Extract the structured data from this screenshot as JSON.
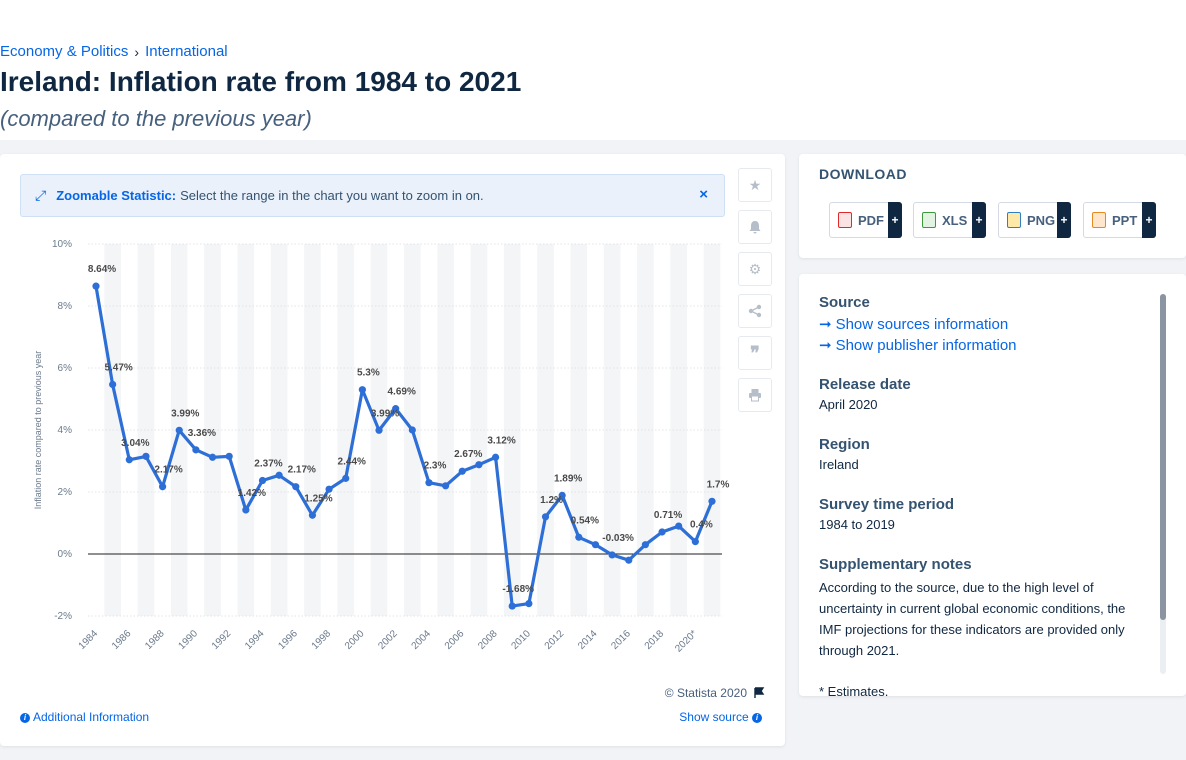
{
  "breadcrumb": {
    "item1": "Economy & Politics",
    "item2": "International",
    "separator": "›"
  },
  "title": "Ireland: Inflation rate from 1984 to 2021",
  "subtitle": "(compared to the previous year)",
  "zoom": {
    "icon": "expand-icon",
    "bold": "Zoomable Statistic:",
    "text": "Select the range in the chart you want to zoom in on.",
    "close": "×"
  },
  "credit": "© Statista 2020",
  "additional_info": "Additional Information",
  "show_source": "Show source",
  "tools": [
    "star-icon",
    "bell-icon",
    "gear-icon",
    "share-icon",
    "quote-icon",
    "print-icon"
  ],
  "download": {
    "title": "DOWNLOAD",
    "buttons": [
      {
        "label": "PDF",
        "color": "#e02a2a"
      },
      {
        "label": "XLS",
        "color": "#3c9a3c"
      },
      {
        "label": "PNG",
        "color": "#2f7fc8"
      },
      {
        "label": "PPT",
        "color": "#e58a1e"
      }
    ],
    "plus": "+"
  },
  "details": {
    "source_h": "Source",
    "show_sources": "Show sources information",
    "show_publisher": "Show publisher information",
    "release_h": "Release date",
    "release_v": "April 2020",
    "region_h": "Region",
    "region_v": "Ireland",
    "survey_h": "Survey time period",
    "survey_v": "1984 to 2019",
    "notes_h": "Supplementary notes",
    "notes_v": "According to the source, due to the high level of uncertainty in current global economic conditions, the IMF projections for these indicators are provided only through 2021.",
    "footnote": "* Estimates."
  },
  "colors": {
    "accent": "#0666e5",
    "line": "#2d6fd6",
    "text_dark": "#0f2741"
  },
  "chart_data": {
    "type": "line",
    "title": "Ireland: Inflation rate from 1984 to 2021",
    "subtitle": "(compared to the previous year)",
    "xlabel": "",
    "ylabel": "Inflation rate compared to previous year",
    "ylim": [
      -2,
      10
    ],
    "yticks": [
      "-2%",
      "0%",
      "2%",
      "4%",
      "6%",
      "8%",
      "10%"
    ],
    "xtick_labels": [
      "1984",
      "1986",
      "1988",
      "1990",
      "1992",
      "1994",
      "1996",
      "1998",
      "2000",
      "2002",
      "2004",
      "2006",
      "2008",
      "2010",
      "2012",
      "2014",
      "2016",
      "2018",
      "2020*"
    ],
    "grid": true,
    "x": [
      1984,
      1985,
      1986,
      1987,
      1988,
      1989,
      1990,
      1991,
      1992,
      1993,
      1994,
      1995,
      1996,
      1997,
      1998,
      1999,
      2000,
      2001,
      2002,
      2003,
      2004,
      2005,
      2006,
      2007,
      2008,
      2009,
      2010,
      2011,
      2012,
      2013,
      2014,
      2015,
      2016,
      2017,
      2018,
      2019,
      2020,
      2021
    ],
    "values": [
      8.64,
      5.47,
      3.04,
      3.15,
      2.17,
      3.99,
      3.36,
      3.12,
      3.15,
      1.42,
      2.37,
      2.54,
      2.17,
      1.25,
      2.09,
      2.44,
      5.3,
      3.99,
      4.69,
      4.0,
      2.3,
      2.2,
      2.67,
      2.88,
      3.12,
      -1.68,
      -1.6,
      1.2,
      1.89,
      0.54,
      0.3,
      -0.03,
      -0.2,
      0.3,
      0.71,
      0.9,
      0.4,
      1.7
    ],
    "point_labels": [
      {
        "year": 1984,
        "text": "8.64%"
      },
      {
        "year": 1985,
        "text": "5.47%"
      },
      {
        "year": 1986,
        "text": "3.04%"
      },
      {
        "year": 1988,
        "text": "2.17%"
      },
      {
        "year": 1989,
        "text": "3.99%"
      },
      {
        "year": 1990,
        "text": "3.36%"
      },
      {
        "year": 1993,
        "text": "1.42%"
      },
      {
        "year": 1994,
        "text": "2.37%"
      },
      {
        "year": 1996,
        "text": "2.17%"
      },
      {
        "year": 1997,
        "text": "1.25%"
      },
      {
        "year": 1999,
        "text": "2.44%"
      },
      {
        "year": 2000,
        "text": "5.3%"
      },
      {
        "year": 2001,
        "text": "3.99%"
      },
      {
        "year": 2002,
        "text": "4.69%"
      },
      {
        "year": 2004,
        "text": "2.3%"
      },
      {
        "year": 2006,
        "text": "2.67%"
      },
      {
        "year": 2008,
        "text": "3.12%"
      },
      {
        "year": 2009,
        "text": "-1.68%"
      },
      {
        "year": 2011,
        "text": "1.2%"
      },
      {
        "year": 2012,
        "text": "1.89%"
      },
      {
        "year": 2013,
        "text": "0.54%"
      },
      {
        "year": 2015,
        "text": "-0.03%"
      },
      {
        "year": 2018,
        "text": "0.71%"
      },
      {
        "year": 2020,
        "text": "0.4%"
      },
      {
        "year": 2021,
        "text": "1.7%"
      }
    ]
  }
}
